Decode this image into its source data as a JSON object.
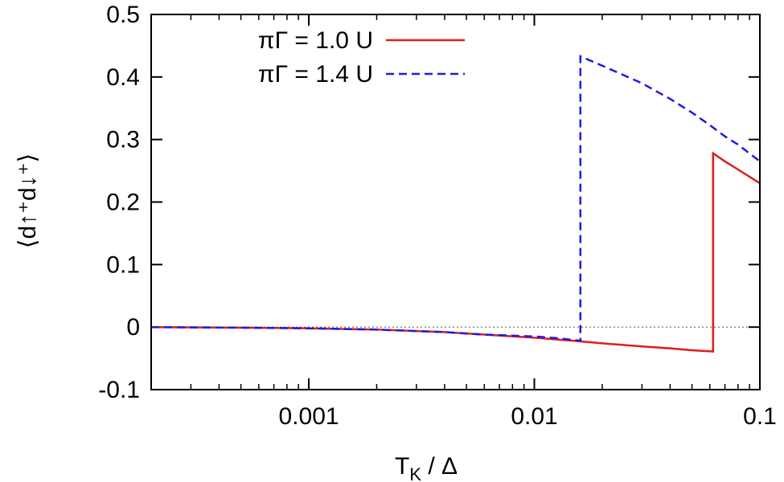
{
  "chart_data": {
    "type": "line",
    "xlabel": "T_K / Δ",
    "xlabel_main": "T",
    "xlabel_sub": "K",
    "xlabel_rest": " / Δ",
    "ylabel": "⟨d↑⁺d↓⁺⟩",
    "xscale": "log",
    "xlim": [
      0.0002,
      0.1
    ],
    "ylim": [
      -0.1,
      0.5
    ],
    "x_ticks": [
      0.001,
      0.01,
      0.1
    ],
    "x_tick_labels": [
      "0.001",
      "0.01",
      "0.1"
    ],
    "y_ticks": [
      -0.1,
      0,
      0.1,
      0.2,
      0.3,
      0.4,
      0.5
    ],
    "y_tick_labels": [
      "-0.1",
      "0",
      "0.1",
      "0.2",
      "0.3",
      "0.4",
      "0.5"
    ],
    "zero_line": true,
    "grid": false,
    "legend_position": "top-left",
    "series": [
      {
        "name": "πΓ = 1.0 U",
        "color": "#e41a1c",
        "dash": "solid",
        "x": [
          0.0002,
          0.0005,
          0.001,
          0.002,
          0.004,
          0.006,
          0.01,
          0.015,
          0.02,
          0.03,
          0.04,
          0.05,
          0.062,
          0.062,
          0.07,
          0.08,
          0.1
        ],
        "y": [
          0.0,
          -0.001,
          -0.002,
          -0.004,
          -0.008,
          -0.012,
          -0.017,
          -0.022,
          -0.026,
          -0.031,
          -0.034,
          -0.037,
          -0.039,
          0.278,
          0.265,
          0.252,
          0.23
        ]
      },
      {
        "name": "πΓ = 1.4 U",
        "color": "#1c1ce4",
        "dash": "dashed",
        "x": [
          0.0002,
          0.0005,
          0.001,
          0.002,
          0.004,
          0.006,
          0.01,
          0.013,
          0.016,
          0.016,
          0.02,
          0.03,
          0.04,
          0.05,
          0.06,
          0.07,
          0.08,
          0.1
        ],
        "y": [
          0.0,
          -0.001,
          -0.002,
          -0.004,
          -0.008,
          -0.012,
          -0.015,
          -0.018,
          -0.022,
          0.433,
          0.418,
          0.39,
          0.365,
          0.343,
          0.323,
          0.305,
          0.292,
          0.265
        ]
      }
    ]
  }
}
